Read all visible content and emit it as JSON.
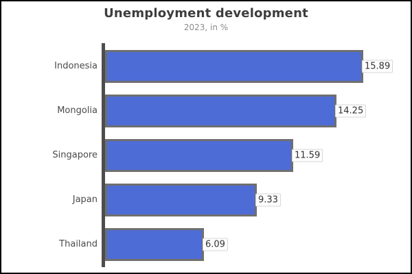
{
  "chart_data": {
    "type": "bar",
    "orientation": "horizontal",
    "title": "Unemployment development",
    "subtitle": "2023, in %",
    "categories": [
      "Indonesia",
      "Mongolia",
      "Singapore",
      "Japan",
      "Thailand"
    ],
    "values": [
      15.89,
      14.25,
      11.59,
      9.33,
      6.09
    ],
    "value_labels": [
      "15.89",
      "14.25",
      "11.59",
      "9.33",
      "6.09"
    ],
    "xlim": [
      0,
      16
    ],
    "grid": false,
    "legend": false,
    "colors": {
      "bar_fill": "#4e6cd6",
      "bar_border": "#6f6f6f",
      "axis": "#4d4d4d",
      "title_text": "#3d3d3d",
      "subtitle_text": "#8c8c8c",
      "label_text": "#4a4a4a",
      "value_chip_bg": "#fdfdfd",
      "background": "#ffffff",
      "frame_border": "#000000"
    }
  }
}
